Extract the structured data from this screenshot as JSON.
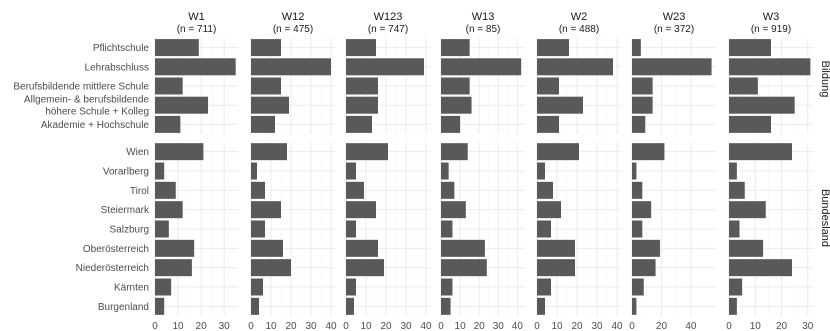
{
  "chart_data": {
    "type": "bar",
    "orientation": "horizontal",
    "facets_columns": [
      {
        "name": "W1",
        "n_label": "(n = 711)",
        "xlim": [
          0,
          36
        ],
        "ticks": [
          0,
          10,
          20,
          30
        ]
      },
      {
        "name": "W12",
        "n_label": "(n = 475)",
        "xlim": [
          0,
          42
        ],
        "ticks": [
          0,
          10,
          20,
          30,
          40
        ]
      },
      {
        "name": "W123",
        "n_label": "(n = 747)",
        "xlim": [
          0,
          42
        ],
        "ticks": [
          0,
          10,
          20,
          30,
          40
        ]
      },
      {
        "name": "W13",
        "n_label": "(n = 85)",
        "xlim": [
          0,
          44
        ],
        "ticks": [
          0,
          10,
          20,
          30,
          40
        ]
      },
      {
        "name": "W2",
        "n_label": "(n = 488)",
        "xlim": [
          0,
          42
        ],
        "ticks": [
          0,
          10,
          20,
          30,
          40
        ]
      },
      {
        "name": "W23",
        "n_label": "(n = 372)",
        "xlim": [
          0,
          57
        ],
        "ticks": [
          0,
          20,
          40
        ]
      },
      {
        "name": "W3",
        "n_label": "(n = 919)",
        "xlim": [
          0,
          32
        ],
        "ticks": [
          0,
          10,
          20,
          30
        ]
      }
    ],
    "facets_rows": [
      {
        "name": "Bildung",
        "categories": [
          "Pflichtschule",
          "Lehrabschluss",
          "Berufsbildende mittlere Schule",
          "Allgemein- & berufsbildende\nhöhere Schule + Kolleg",
          "Akademie + Hochschule"
        ]
      },
      {
        "name": "Bundesland",
        "categories": [
          "Wien",
          "Vorarlberg",
          "Tirol",
          "Steiermark",
          "Salzburg",
          "Oberösterreich",
          "Niederösterreich",
          "Kärnten",
          "Burgenland"
        ]
      }
    ],
    "values": {
      "Bildung": {
        "W1": [
          19,
          35,
          12,
          23,
          11
        ],
        "W12": [
          15,
          40,
          15,
          19,
          12
        ],
        "W123": [
          15,
          39,
          16,
          16,
          13
        ],
        "W13": [
          15,
          42,
          15,
          16,
          10
        ],
        "W2": [
          16,
          38,
          11,
          23,
          11
        ],
        "W23": [
          6,
          54,
          14,
          14,
          9
        ],
        "W3": [
          16,
          31,
          11,
          25,
          16
        ]
      },
      "Bundesland": {
        "W1": [
          21,
          4,
          9,
          12,
          6,
          17,
          16,
          7,
          4
        ],
        "W12": [
          18,
          3,
          7,
          15,
          7,
          16,
          20,
          6,
          4
        ],
        "W123": [
          21,
          5,
          9,
          15,
          5,
          16,
          19,
          5,
          4
        ],
        "W13": [
          14,
          4,
          7,
          13,
          6,
          23,
          24,
          6,
          5
        ],
        "W2": [
          21,
          4,
          8,
          12,
          7,
          19,
          19,
          7,
          4
        ],
        "W23": [
          22,
          3,
          7,
          13,
          7,
          19,
          16,
          8,
          3
        ],
        "W3": [
          24,
          3,
          6,
          14,
          4,
          13,
          24,
          5,
          3
        ]
      }
    },
    "grid": true
  }
}
